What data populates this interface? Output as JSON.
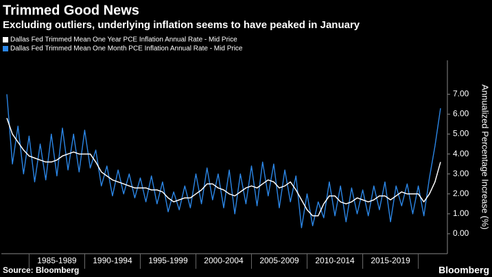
{
  "chart_data": {
    "type": "line",
    "title": "Trimmed Good News",
    "subtitle": "Excluding outliers, underlying inflation seems to have peaked in January",
    "y_label": "Annualized Percentage Increase (%)",
    "source": "Source: Bloomberg",
    "brand": "Bloomberg",
    "categories": [
      null,
      null,
      null,
      null,
      null,
      null,
      null,
      null,
      null,
      "1985-1989",
      null,
      null,
      null,
      null,
      null,
      null,
      null,
      null,
      null,
      "1990-1994",
      null,
      null,
      null,
      null,
      null,
      null,
      null,
      null,
      null,
      "1995-1999",
      null,
      null,
      null,
      null,
      null,
      null,
      null,
      null,
      null,
      "2000-2004",
      null,
      null,
      null,
      null,
      null,
      null,
      null,
      null,
      null,
      "2005-2009",
      null,
      null,
      null,
      null,
      null,
      null,
      null,
      null,
      null,
      "2010-2014",
      null,
      null,
      null,
      null,
      null,
      null,
      null,
      null,
      null,
      "2015-2019",
      null,
      null,
      null,
      null,
      null,
      null,
      null,
      null,
      null
    ],
    "series": [
      {
        "name": "Dallas Fed Trimmed Mean One Year PCE Inflation Annual Rate - Mid Price",
        "color": "#ffffff",
        "values": [
          5.8,
          5.0,
          4.6,
          4.2,
          3.9,
          3.8,
          3.7,
          3.6,
          3.6,
          3.7,
          3.9,
          4.0,
          4.1,
          4.0,
          4.0,
          4.0,
          3.6,
          3.1,
          2.9,
          2.7,
          2.6,
          2.5,
          2.4,
          2.3,
          2.3,
          2.3,
          2.2,
          2.2,
          2.1,
          1.8,
          1.6,
          1.7,
          1.8,
          1.8,
          2.0,
          2.2,
          2.5,
          2.5,
          2.3,
          2.2,
          2.0,
          1.9,
          2.1,
          2.3,
          2.4,
          2.3,
          2.5,
          2.7,
          2.6,
          2.3,
          2.4,
          2.6,
          2.2,
          1.7,
          1.2,
          0.9,
          0.9,
          1.5,
          1.9,
          1.9,
          1.6,
          1.5,
          1.6,
          1.8,
          1.7,
          1.6,
          1.7,
          1.9,
          1.9,
          1.7,
          1.9,
          2.1,
          2.0,
          2.0,
          2.0,
          1.6,
          2.0,
          2.6,
          3.6
        ]
      },
      {
        "name": "Dallas Fed Trimmed Mean One Month PCE Inflation Annual Rate - Mid Price",
        "color": "#2b86e6",
        "values": [
          7.0,
          3.5,
          5.4,
          3.0,
          4.9,
          2.6,
          4.5,
          2.7,
          5.0,
          2.9,
          5.3,
          3.2,
          5.0,
          3.1,
          5.2,
          3.3,
          4.2,
          2.4,
          3.4,
          1.9,
          3.2,
          2.0,
          3.0,
          1.8,
          2.8,
          1.6,
          2.9,
          1.5,
          2.6,
          1.1,
          2.1,
          1.2,
          2.4,
          1.3,
          3.0,
          1.5,
          3.3,
          1.7,
          3.0,
          1.3,
          3.2,
          1.0,
          3.0,
          1.5,
          3.4,
          1.4,
          3.6,
          1.9,
          3.5,
          1.3,
          3.2,
          1.6,
          2.9,
          0.3,
          2.0,
          0.4,
          1.6,
          0.8,
          2.6,
          0.9,
          2.4,
          0.6,
          2.3,
          1.0,
          2.2,
          0.9,
          2.4,
          1.2,
          2.6,
          0.6,
          2.4,
          1.4,
          2.5,
          1.0,
          2.4,
          0.9,
          2.8,
          4.4,
          6.3
        ]
      }
    ],
    "ylim": [
      -1,
      8.7
    ],
    "yticks": [
      {
        "value": 0,
        "label": "0.00"
      },
      {
        "value": 1,
        "label": "1.00"
      },
      {
        "value": 2,
        "label": "2.00"
      },
      {
        "value": 3,
        "label": "3.00"
      },
      {
        "value": 4,
        "label": "4.00"
      },
      {
        "value": 5,
        "label": "5.00"
      },
      {
        "value": 6,
        "label": "6.00"
      },
      {
        "value": 7,
        "label": "7.00"
      }
    ],
    "grid": false,
    "legend": "top-left"
  }
}
